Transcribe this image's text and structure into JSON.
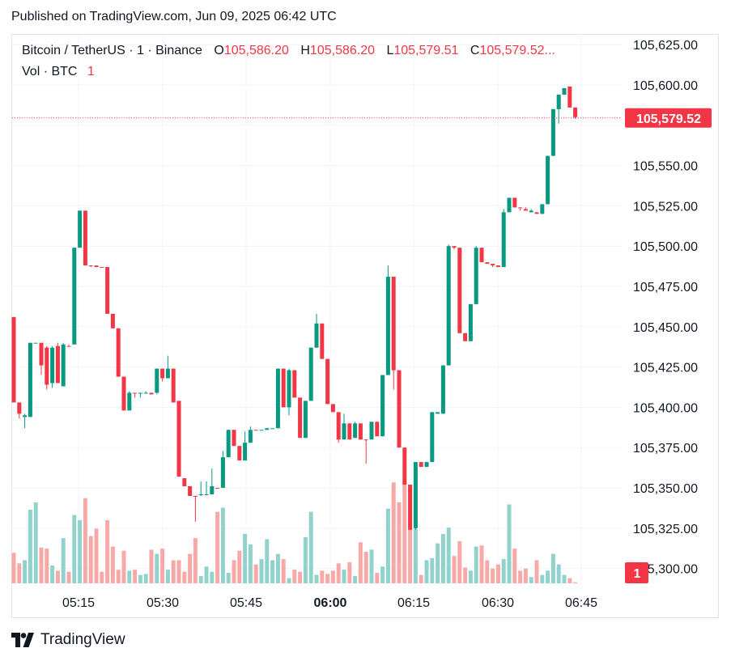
{
  "published": "Published on TradingView.com, Jun 09, 2025 06:42 UTC",
  "legend": {
    "symbol": "Bitcoin / TetherUS · 1 · Binance",
    "o_label": "O",
    "o_value": "105,586.20",
    "h_label": "H",
    "h_value": "105,586.20",
    "l_label": "L",
    "l_value": "105,579.51",
    "c_label": "C",
    "c_value": "105,579.52...",
    "vol_label": "Vol · BTC",
    "vol_value": "1"
  },
  "footer": {
    "brand": "TradingView",
    "logo_icon": "tradingview-logo-icon"
  },
  "colors": {
    "up": "#089981",
    "down": "#f23645",
    "up_vol": "#92d2cc",
    "down_vol": "#f7a9a7"
  },
  "chart_data": {
    "type": "candlestick",
    "interval": "1 minute",
    "price_axis": {
      "ticks": [
        105300,
        105325,
        105350,
        105375,
        105400,
        105425,
        105450,
        105475,
        105500,
        105525,
        105550,
        105575,
        105600,
        105625
      ],
      "tick_labels": [
        "105,300.00",
        "105,325.00",
        "105,350.00",
        "105,375.00",
        "105,400.00",
        "105,425.00",
        "105,450.00",
        "105,475.00",
        "105,500.00",
        "105,525.00",
        "105,550.00",
        "",
        "105,600.00",
        "105,625.00"
      ],
      "ylim": [
        105290,
        105636
      ]
    },
    "time_axis": {
      "labels": [
        "05:15",
        "05:30",
        "05:45",
        "06:00",
        "06:15",
        "06:30",
        "06:45"
      ],
      "bold_label": "06:00"
    },
    "last_price": {
      "value": 105579.52,
      "label": "105,579.52"
    },
    "volume_last": {
      "label": "1"
    },
    "candles": [
      {
        "t": "05:03",
        "o": 105456,
        "h": 105456,
        "l": 105403,
        "c": 105403,
        "v": 29,
        "d": -1
      },
      {
        "t": "05:04",
        "o": 105403,
        "h": 105403,
        "l": 105393,
        "c": 105396,
        "v": 19,
        "d": -1
      },
      {
        "t": "05:05",
        "o": 105394,
        "h": 105396,
        "l": 105387,
        "c": 105395,
        "v": 22,
        "d": 1
      },
      {
        "t": "05:06",
        "o": 105394,
        "h": 105440,
        "l": 105394,
        "c": 105440,
        "v": 70,
        "d": 1
      },
      {
        "t": "05:07",
        "o": 105440,
        "h": 105440,
        "l": 105440,
        "c": 105440,
        "v": 77,
        "d": 1
      },
      {
        "t": "05:08",
        "o": 105440,
        "h": 105440,
        "l": 105420,
        "c": 105426,
        "v": 34,
        "d": -1
      },
      {
        "t": "05:09",
        "o": 105437,
        "h": 105438,
        "l": 105411,
        "c": 105414,
        "v": 33,
        "d": -1
      },
      {
        "t": "05:10",
        "o": 105415,
        "h": 105438,
        "l": 105412,
        "c": 105437,
        "v": 17,
        "d": 1
      },
      {
        "t": "05:11",
        "o": 105438,
        "h": 105440,
        "l": 105415,
        "c": 105415,
        "v": 12,
        "d": -1
      },
      {
        "t": "05:12",
        "o": 105413,
        "h": 105440,
        "l": 105413,
        "c": 105439,
        "v": 43,
        "d": 1
      },
      {
        "t": "05:13",
        "o": 105438,
        "h": 105439,
        "l": 105438,
        "c": 105438,
        "v": 11,
        "d": -1
      },
      {
        "t": "05:14",
        "o": 105439,
        "h": 105499,
        "l": 105439,
        "c": 105499,
        "v": 65,
        "d": 1
      },
      {
        "t": "05:15",
        "o": 105499,
        "h": 105522,
        "l": 105499,
        "c": 105522,
        "v": 60,
        "d": 1
      },
      {
        "t": "05:16",
        "o": 105522,
        "h": 105522,
        "l": 105488,
        "c": 105488,
        "v": 81,
        "d": -1
      },
      {
        "t": "05:17",
        "o": 105488,
        "h": 105488,
        "l": 105487,
        "c": 105488,
        "v": 45,
        "d": -1
      },
      {
        "t": "05:18",
        "o": 105488,
        "h": 105488,
        "l": 105487,
        "c": 105487,
        "v": 52,
        "d": -1
      },
      {
        "t": "05:19",
        "o": 105487,
        "h": 105487,
        "l": 105487,
        "c": 105487,
        "v": 11,
        "d": -1
      },
      {
        "t": "05:20",
        "o": 105487,
        "h": 105487,
        "l": 105458,
        "c": 105458,
        "v": 60,
        "d": -1
      },
      {
        "t": "05:21",
        "o": 105458,
        "h": 105458,
        "l": 105449,
        "c": 105449,
        "v": 35,
        "d": -1
      },
      {
        "t": "05:22",
        "o": 105449,
        "h": 105449,
        "l": 105419,
        "c": 105419,
        "v": 13,
        "d": -1
      },
      {
        "t": "05:23",
        "o": 105419,
        "h": 105419,
        "l": 105398,
        "c": 105398,
        "v": 31,
        "d": -1
      },
      {
        "t": "05:24",
        "o": 105398,
        "h": 105410,
        "l": 105398,
        "c": 105409,
        "v": 12,
        "d": 1
      },
      {
        "t": "05:25",
        "o": 105409,
        "h": 105409,
        "l": 105406,
        "c": 105409,
        "v": 13,
        "d": -1
      },
      {
        "t": "05:26",
        "o": 105409,
        "h": 105409,
        "l": 105406,
        "c": 105409,
        "v": 8,
        "d": 1
      },
      {
        "t": "05:27",
        "o": 105409,
        "h": 105410,
        "l": 105409,
        "c": 105409,
        "v": 9,
        "d": 1
      },
      {
        "t": "05:28",
        "o": 105409,
        "h": 105409,
        "l": 105408,
        "c": 105408,
        "v": 32,
        "d": -1
      },
      {
        "t": "05:29",
        "o": 105409,
        "h": 105424,
        "l": 105408,
        "c": 105424,
        "v": 28,
        "d": 1
      },
      {
        "t": "05:30",
        "o": 105424,
        "h": 105424,
        "l": 105416,
        "c": 105418,
        "v": 33,
        "d": -1
      },
      {
        "t": "05:31",
        "o": 105418,
        "h": 105432,
        "l": 105418,
        "c": 105424,
        "v": 13,
        "d": 1
      },
      {
        "t": "05:32",
        "o": 105424,
        "h": 105424,
        "l": 105403,
        "c": 105403,
        "v": 22,
        "d": -1
      },
      {
        "t": "05:33",
        "o": 105404,
        "h": 105404,
        "l": 105357,
        "c": 105357,
        "v": 22,
        "d": -1
      },
      {
        "t": "05:34",
        "o": 105356,
        "h": 105356,
        "l": 105351,
        "c": 105351,
        "v": 11,
        "d": -1
      },
      {
        "t": "05:35",
        "o": 105351,
        "h": 105351,
        "l": 105345,
        "c": 105345,
        "v": 28,
        "d": -1
      },
      {
        "t": "05:36",
        "o": 105345,
        "h": 105345,
        "l": 105329,
        "c": 105345,
        "v": 43,
        "d": -1
      },
      {
        "t": "05:37",
        "o": 105346,
        "h": 105354,
        "l": 105345,
        "c": 105346,
        "v": 7,
        "d": 1
      },
      {
        "t": "05:38",
        "o": 105346,
        "h": 105354,
        "l": 105346,
        "c": 105346,
        "v": 16,
        "d": 1
      },
      {
        "t": "05:39",
        "o": 105346,
        "h": 105362,
        "l": 105346,
        "c": 105351,
        "v": 11,
        "d": 1
      },
      {
        "t": "05:40",
        "o": 105350,
        "h": 105350,
        "l": 105350,
        "c": 105350,
        "v": 68,
        "d": -1
      },
      {
        "t": "05:41",
        "o": 105350,
        "h": 105373,
        "l": 105350,
        "c": 105369,
        "v": 72,
        "d": 1
      },
      {
        "t": "05:42",
        "o": 105369,
        "h": 105386,
        "l": 105369,
        "c": 105386,
        "v": 10,
        "d": 1
      },
      {
        "t": "05:43",
        "o": 105386,
        "h": 105386,
        "l": 105376,
        "c": 105376,
        "v": 22,
        "d": -1
      },
      {
        "t": "05:44",
        "o": 105376,
        "h": 105376,
        "l": 105367,
        "c": 105367,
        "v": 31,
        "d": -1
      },
      {
        "t": "05:45",
        "o": 105367,
        "h": 105385,
        "l": 105367,
        "c": 105378,
        "v": 47,
        "d": 1
      },
      {
        "t": "05:46",
        "o": 105378,
        "h": 105388,
        "l": 105378,
        "c": 105386,
        "v": 37,
        "d": 1
      },
      {
        "t": "05:47",
        "o": 105386,
        "h": 105386,
        "l": 105386,
        "c": 105386,
        "v": 18,
        "d": -1
      },
      {
        "t": "05:48",
        "o": 105386,
        "h": 105386,
        "l": 105386,
        "c": 105386,
        "v": 23,
        "d": 1
      },
      {
        "t": "05:49",
        "o": 105386,
        "h": 105387,
        "l": 105386,
        "c": 105387,
        "v": 42,
        "d": 1
      },
      {
        "t": "05:50",
        "o": 105387,
        "h": 105387,
        "l": 105387,
        "c": 105387,
        "v": 22,
        "d": 1
      },
      {
        "t": "05:51",
        "o": 105387,
        "h": 105424,
        "l": 105387,
        "c": 105424,
        "v": 28,
        "d": 1
      },
      {
        "t": "05:52",
        "o": 105424,
        "h": 105424,
        "l": 105400,
        "c": 105400,
        "v": 23,
        "d": -1
      },
      {
        "t": "05:53",
        "o": 105400,
        "h": 105424,
        "l": 105395,
        "c": 105423,
        "v": 5,
        "d": 1
      },
      {
        "t": "05:54",
        "o": 105423,
        "h": 105423,
        "l": 105406,
        "c": 105406,
        "v": 13,
        "d": -1
      },
      {
        "t": "05:55",
        "o": 105406,
        "h": 105406,
        "l": 105381,
        "c": 105381,
        "v": 11,
        "d": -1
      },
      {
        "t": "05:56",
        "o": 105381,
        "h": 105404,
        "l": 105381,
        "c": 105404,
        "v": 44,
        "d": 1
      },
      {
        "t": "05:57",
        "o": 105404,
        "h": 105437,
        "l": 105404,
        "c": 105437,
        "v": 68,
        "d": 1
      },
      {
        "t": "05:58",
        "o": 105437,
        "h": 105458,
        "l": 105437,
        "c": 105452,
        "v": 8,
        "d": 1
      },
      {
        "t": "05:59",
        "o": 105452,
        "h": 105452,
        "l": 105430,
        "c": 105430,
        "v": 12,
        "d": -1
      },
      {
        "t": "06:00",
        "o": 105430,
        "h": 105430,
        "l": 105402,
        "c": 105402,
        "v": 9,
        "d": -1
      },
      {
        "t": "06:01",
        "o": 105402,
        "h": 105402,
        "l": 105397,
        "c": 105397,
        "v": 12,
        "d": -1
      },
      {
        "t": "06:02",
        "o": 105397,
        "h": 105397,
        "l": 105378,
        "c": 105380,
        "v": 19,
        "d": -1
      },
      {
        "t": "06:03",
        "o": 105380,
        "h": 105396,
        "l": 105380,
        "c": 105390,
        "v": 13,
        "d": 1
      },
      {
        "t": "06:04",
        "o": 105390,
        "h": 105390,
        "l": 105380,
        "c": 105380,
        "v": 20,
        "d": -1
      },
      {
        "t": "06:05",
        "o": 105381,
        "h": 105391,
        "l": 105381,
        "c": 105390,
        "v": 7,
        "d": 1
      },
      {
        "t": "06:06",
        "o": 105390,
        "h": 105390,
        "l": 105380,
        "c": 105380,
        "v": 39,
        "d": -1
      },
      {
        "t": "06:07",
        "o": 105380,
        "h": 105380,
        "l": 105365,
        "c": 105380,
        "v": 30,
        "d": -1
      },
      {
        "t": "06:08",
        "o": 105380,
        "h": 105391,
        "l": 105380,
        "c": 105391,
        "v": 32,
        "d": 1
      },
      {
        "t": "06:09",
        "o": 105391,
        "h": 105391,
        "l": 105382,
        "c": 105382,
        "v": 10,
        "d": -1
      },
      {
        "t": "06:10",
        "o": 105382,
        "h": 105420,
        "l": 105382,
        "c": 105420,
        "v": 16,
        "d": 1
      },
      {
        "t": "06:11",
        "o": 105420,
        "h": 105488,
        "l": 105420,
        "c": 105481,
        "v": 71,
        "d": 1
      },
      {
        "t": "06:12",
        "o": 105481,
        "h": 105481,
        "l": 105411,
        "c": 105423,
        "v": 96,
        "d": -1
      },
      {
        "t": "06:13",
        "o": 105423,
        "h": 105423,
        "l": 105375,
        "c": 105375,
        "v": 77,
        "d": -1
      },
      {
        "t": "06:14",
        "o": 105375,
        "h": 105375,
        "l": 105352,
        "c": 105352,
        "v": 98,
        "d": -1
      },
      {
        "t": "06:15",
        "o": 105352,
        "h": 105352,
        "l": 105324,
        "c": 105324,
        "v": 90,
        "d": -1
      },
      {
        "t": "06:16",
        "o": 105325,
        "h": 105366,
        "l": 105324,
        "c": 105366,
        "v": 52,
        "d": 1
      },
      {
        "t": "06:17",
        "o": 105366,
        "h": 105366,
        "l": 105363,
        "c": 105363,
        "v": 8,
        "d": -1
      },
      {
        "t": "06:18",
        "o": 105363,
        "h": 105366,
        "l": 105363,
        "c": 105366,
        "v": 22,
        "d": 1
      },
      {
        "t": "06:19",
        "o": 105366,
        "h": 105397,
        "l": 105366,
        "c": 105397,
        "v": 24,
        "d": 1
      },
      {
        "t": "06:20",
        "o": 105397,
        "h": 105397,
        "l": 105396,
        "c": 105396,
        "v": 38,
        "d": 1
      },
      {
        "t": "06:21",
        "o": 105396,
        "h": 105426,
        "l": 105396,
        "c": 105426,
        "v": 47,
        "d": 1
      },
      {
        "t": "06:22",
        "o": 105426,
        "h": 105501,
        "l": 105426,
        "c": 105500,
        "v": 53,
        "d": 1
      },
      {
        "t": "06:23",
        "o": 105500,
        "h": 105500,
        "l": 105498,
        "c": 105499,
        "v": 26,
        "d": -1
      },
      {
        "t": "06:24",
        "o": 105499,
        "h": 105499,
        "l": 105446,
        "c": 105446,
        "v": 40,
        "d": -1
      },
      {
        "t": "06:25",
        "o": 105446,
        "h": 105446,
        "l": 105441,
        "c": 105441,
        "v": 15,
        "d": -1
      },
      {
        "t": "06:26",
        "o": 105441,
        "h": 105464,
        "l": 105441,
        "c": 105464,
        "v": 12,
        "d": 1
      },
      {
        "t": "06:27",
        "o": 105464,
        "h": 105500,
        "l": 105464,
        "c": 105499,
        "v": 35,
        "d": 1
      },
      {
        "t": "06:28",
        "o": 105499,
        "h": 105499,
        "l": 105490,
        "c": 105490,
        "v": 36,
        "d": -1
      },
      {
        "t": "06:29",
        "o": 105490,
        "h": 105490,
        "l": 105489,
        "c": 105489,
        "v": 22,
        "d": -1
      },
      {
        "t": "06:30",
        "o": 105489,
        "h": 105489,
        "l": 105487,
        "c": 105488,
        "v": 14,
        "d": -1
      },
      {
        "t": "06:31",
        "o": 105488,
        "h": 105488,
        "l": 105487,
        "c": 105487,
        "v": 18,
        "d": -1
      },
      {
        "t": "06:32",
        "o": 105487,
        "h": 105523,
        "l": 105487,
        "c": 105521,
        "v": 23,
        "d": 1
      },
      {
        "t": "06:33",
        "o": 105521,
        "h": 105530,
        "l": 105521,
        "c": 105530,
        "v": 75,
        "d": 1
      },
      {
        "t": "06:34",
        "o": 105530,
        "h": 105530,
        "l": 105524,
        "c": 105524,
        "v": 33,
        "d": -1
      },
      {
        "t": "06:35",
        "o": 105524,
        "h": 105524,
        "l": 105522,
        "c": 105524,
        "v": 12,
        "d": -1
      },
      {
        "t": "06:36",
        "o": 105523,
        "h": 105524,
        "l": 105522,
        "c": 105522,
        "v": 14,
        "d": -1
      },
      {
        "t": "06:37",
        "o": 105522,
        "h": 105523,
        "l": 105521,
        "c": 105521,
        "v": 6,
        "d": 1
      },
      {
        "t": "06:38",
        "o": 105521,
        "h": 105521,
        "l": 105520,
        "c": 105520,
        "v": 22,
        "d": -1
      },
      {
        "t": "06:39",
        "o": 105520,
        "h": 105526,
        "l": 105520,
        "c": 105526,
        "v": 8,
        "d": 1
      },
      {
        "t": "06:40",
        "o": 105526,
        "h": 105556,
        "l": 105526,
        "c": 105556,
        "v": 12,
        "d": 1
      },
      {
        "t": "06:41",
        "o": 105556,
        "h": 105585,
        "l": 105556,
        "c": 105585,
        "v": 28,
        "d": 1
      },
      {
        "t": "06:42",
        "o": 105585,
        "h": 105594,
        "l": 105576,
        "c": 105594,
        "v": 18,
        "d": 1
      },
      {
        "t": "06:43",
        "o": 105594,
        "h": 105598,
        "l": 105594,
        "c": 105598,
        "v": 8,
        "d": 1
      },
      {
        "t": "06:44",
        "o": 105599,
        "h": 105599,
        "l": 105586,
        "c": 105586,
        "v": 5,
        "d": -1
      },
      {
        "t": "06:45",
        "o": 105586,
        "h": 105586,
        "l": 105579,
        "c": 105580,
        "v": 1,
        "d": -1
      }
    ]
  }
}
